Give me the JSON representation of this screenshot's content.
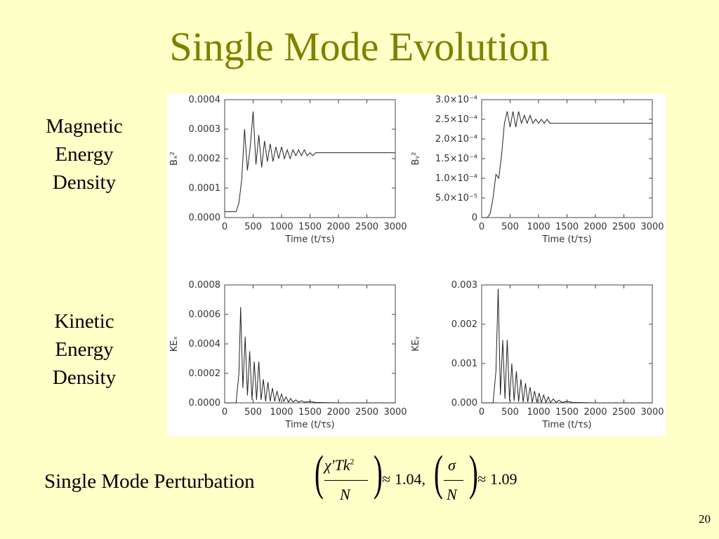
{
  "title": "Single Mode Evolution",
  "labels": {
    "magnetic": [
      "Magnetic",
      "Energy",
      "Density"
    ],
    "kinetic": [
      "Kinetic",
      "Energy",
      "Density"
    ],
    "perturbation": "Single Mode Perturbation"
  },
  "formula": {
    "num1": "χ′Tk",
    "num1_sup": "2",
    "den1": "N",
    "approx1": "≈",
    "value1": "1.04,",
    "num2": "σ",
    "den2": "N",
    "approx2": "≈",
    "value2": "1.09"
  },
  "page_number": "20",
  "chart_data": [
    {
      "type": "line",
      "ylabel": "Bₓ²",
      "xlabel": "Time (t/τs)",
      "xlim": [
        0,
        3000
      ],
      "ylim": [
        0,
        0.0004
      ],
      "xticks": [
        "0",
        "500",
        "1000",
        "1500",
        "2000",
        "2500",
        "3000"
      ],
      "yticks": [
        "0.0000",
        "0.0001",
        "0.0002",
        "0.0003",
        "0.0004"
      ],
      "series": [
        {
          "x": [
            0,
            100,
            200,
            250,
            300,
            350,
            400,
            450,
            500,
            550,
            600,
            650,
            700,
            750,
            800,
            850,
            900,
            950,
            1000,
            1050,
            1100,
            1150,
            1200,
            1250,
            1300,
            1350,
            1400,
            1450,
            1500,
            1550,
            1600,
            1700,
            1800,
            1900,
            2000,
            2100,
            2200,
            2400,
            2600,
            2800,
            3000
          ],
          "y": [
            2e-05,
            2e-05,
            2e-05,
            5e-05,
            0.00013,
            0.0003,
            0.00016,
            0.00024,
            0.00036,
            0.00018,
            0.00028,
            0.00017,
            0.00026,
            0.00019,
            0.00025,
            0.00019,
            0.00024,
            0.0002,
            0.00024,
            0.0002,
            0.00023,
            0.0002,
            0.00023,
            0.00021,
            0.00023,
            0.00021,
            0.00023,
            0.00021,
            0.00022,
            0.00021,
            0.00022,
            0.00022,
            0.00022,
            0.00022,
            0.00022,
            0.00022,
            0.00022,
            0.00022,
            0.00022,
            0.00022,
            0.00022
          ]
        }
      ]
    },
    {
      "type": "line",
      "ylabel": "Bᵧ²",
      "xlabel": "Time (t/τs)",
      "xlim": [
        0,
        3000
      ],
      "ylim": [
        0,
        0.0003
      ],
      "xticks": [
        "0",
        "500",
        "1000",
        "1500",
        "2000",
        "2500",
        "3000"
      ],
      "yticks": [
        "0",
        "5.0×10⁻⁵",
        "1.0×10⁻⁴",
        "1.5×10⁻⁴",
        "2.0×10⁻⁴",
        "2.5×10⁻⁴",
        "3.0×10⁻⁴"
      ],
      "series": [
        {
          "x": [
            0,
            100,
            150,
            200,
            250,
            300,
            350,
            400,
            450,
            500,
            550,
            600,
            650,
            700,
            750,
            800,
            850,
            900,
            950,
            1000,
            1050,
            1100,
            1150,
            1200,
            1300,
            1400,
            1500,
            1600,
            1800,
            2000,
            2500,
            3000
          ],
          "y": [
            0,
            0,
            1e-05,
            5e-05,
            0.00011,
            0.0001,
            0.00016,
            0.00024,
            0.00027,
            0.00023,
            0.00027,
            0.00023,
            0.00027,
            0.00024,
            0.00026,
            0.00024,
            0.00026,
            0.00024,
            0.00025,
            0.00024,
            0.00025,
            0.00024,
            0.00025,
            0.00024,
            0.00024,
            0.00024,
            0.00024,
            0.00024,
            0.00024,
            0.00024,
            0.00024,
            0.00024
          ]
        }
      ]
    },
    {
      "type": "line",
      "ylabel": "KEₓ",
      "xlabel": "Time (t/τs)",
      "xlim": [
        0,
        3000
      ],
      "ylim": [
        0,
        0.0008
      ],
      "xticks": [
        "0",
        "500",
        "1000",
        "1500",
        "2000",
        "2500",
        "3000"
      ],
      "yticks": [
        "0.0000",
        "0.0002",
        "0.0004",
        "0.0006",
        "0.0008"
      ],
      "series": [
        {
          "x": [
            0,
            200,
            250,
            280,
            320,
            360,
            400,
            440,
            480,
            520,
            560,
            600,
            640,
            680,
            720,
            760,
            800,
            840,
            880,
            920,
            960,
            1000,
            1040,
            1080,
            1120,
            1160,
            1200,
            1250,
            1300,
            1350,
            1400,
            1500,
            1600,
            1800,
            2000,
            2500,
            3000
          ],
          "y": [
            0,
            0,
            0.0002,
            0.00065,
            0.0001,
            0.00045,
            5e-05,
            0.00035,
            2e-05,
            0.00028,
            2e-05,
            0.00028,
            2e-05,
            0.00016,
            1e-05,
            0.00014,
            1e-05,
            0.0001,
            1e-05,
            8e-05,
            1e-05,
            6e-05,
            1e-05,
            4e-05,
            5e-06,
            3e-05,
            5e-06,
            2e-05,
            5e-06,
            1.5e-05,
            5e-06,
            8e-06,
            3e-06,
            1e-06,
            0,
            0,
            0
          ]
        }
      ]
    },
    {
      "type": "line",
      "ylabel": "KEᵧ",
      "xlabel": "Time (t/τs)",
      "xlim": [
        0,
        3000
      ],
      "ylim": [
        0,
        0.003
      ],
      "xticks": [
        "0",
        "500",
        "1000",
        "1500",
        "2000",
        "2500",
        "3000"
      ],
      "yticks": [
        "0.000",
        "0.001",
        "0.002",
        "0.003"
      ],
      "series": [
        {
          "x": [
            0,
            200,
            250,
            290,
            330,
            370,
            410,
            450,
            490,
            530,
            570,
            610,
            650,
            690,
            730,
            770,
            810,
            850,
            890,
            930,
            970,
            1010,
            1050,
            1090,
            1130,
            1170,
            1210,
            1260,
            1310,
            1360,
            1410,
            1500,
            1600,
            1800,
            2000,
            2500,
            3000
          ],
          "y": [
            0,
            0,
            0.0008,
            0.0029,
            0.0002,
            0.0016,
            0.0001,
            0.0016,
            5e-05,
            0.001,
            5e-05,
            0.0008,
            3e-05,
            0.0006,
            2e-05,
            0.0005,
            2e-05,
            0.0004,
            1e-05,
            0.0003,
            1e-05,
            0.00025,
            1e-05,
            0.0002,
            1e-05,
            0.00015,
            1e-05,
            0.0001,
            1e-05,
            7e-05,
            1e-05,
            4e-05,
            1e-05,
            5e-06,
            0,
            0,
            0
          ]
        }
      ]
    }
  ]
}
